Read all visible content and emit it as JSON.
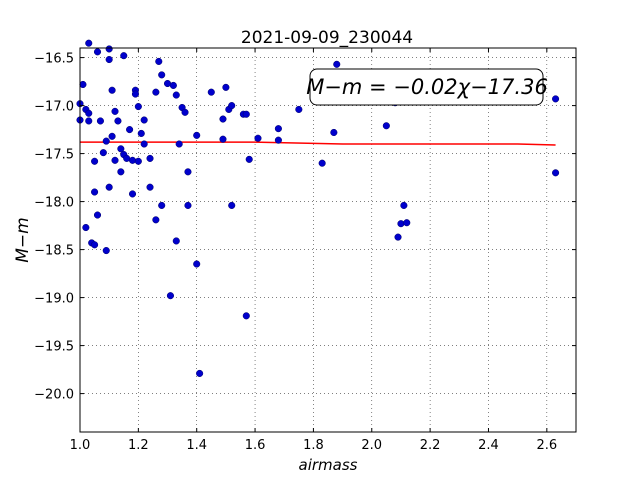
{
  "chart_data": {
    "type": "scatter",
    "title": "2021-09-09_230044",
    "xlabel": "airmass",
    "ylabel": "M−m",
    "annotation": "M−m = −0.02χ−17.36",
    "xlim": [
      1.0,
      2.7
    ],
    "ylim": [
      -20.4,
      -16.4
    ],
    "ylim_inverted_note": "inverted",
    "grid": true,
    "xticks": [
      1.0,
      1.2,
      1.4,
      1.6,
      1.8,
      2.0,
      2.2,
      2.4,
      2.6
    ],
    "xtick_labels": [
      "1.0",
      "1.2",
      "1.4",
      "1.6",
      "1.8",
      "2.0",
      "2.2",
      "2.4",
      "2.6"
    ],
    "yticks": [
      -16.5,
      -17.0,
      -17.5,
      -18.0,
      -18.5,
      -19.0,
      -19.5,
      -20.0
    ],
    "ytick_labels": [
      "−16.5",
      "−17.0",
      "−17.5",
      "−18.0",
      "−18.5",
      "−19.0",
      "−19.5",
      "−20.0"
    ],
    "colors": {
      "points": "#0000cc",
      "fit_line": "#ff0000"
    },
    "series": [
      {
        "type": "scatter",
        "x": [
          1.0,
          1.0,
          1.01,
          1.02,
          1.02,
          1.03,
          1.03,
          1.03,
          1.04,
          1.05,
          1.05,
          1.05,
          1.06,
          1.06,
          1.07,
          1.08,
          1.09,
          1.09,
          1.1,
          1.1,
          1.1,
          1.11,
          1.11,
          1.12,
          1.12,
          1.13,
          1.14,
          1.14,
          1.15,
          1.15,
          1.16,
          1.17,
          1.18,
          1.18,
          1.19,
          1.19,
          1.2,
          1.2,
          1.21,
          1.22,
          1.22,
          1.24,
          1.24,
          1.26,
          1.26,
          1.27,
          1.28,
          1.28,
          1.3,
          1.31,
          1.32,
          1.33,
          1.33,
          1.34,
          1.35,
          1.36,
          1.37,
          1.37,
          1.4,
          1.4,
          1.41,
          1.45,
          1.49,
          1.49,
          1.5,
          1.51,
          1.52,
          1.52,
          1.56,
          1.57,
          1.57,
          1.58,
          1.61,
          1.68,
          1.68,
          1.75,
          1.83,
          1.87,
          1.88,
          2.05,
          2.08,
          2.09,
          2.1,
          2.11,
          2.12,
          2.63,
          2.63
        ],
        "y": [
          -16.98,
          -17.15,
          -16.78,
          -17.04,
          -18.27,
          -16.35,
          -17.16,
          -17.08,
          -18.43,
          -17.9,
          -18.45,
          -17.58,
          -16.44,
          -18.14,
          -17.16,
          -17.49,
          -17.37,
          -18.51,
          -16.41,
          -16.52,
          -17.85,
          -16.84,
          -17.32,
          -17.57,
          -17.06,
          -17.16,
          -17.45,
          -17.69,
          -16.48,
          -17.51,
          -17.55,
          -17.25,
          -17.57,
          -17.92,
          -16.84,
          -16.88,
          -17.58,
          -17.01,
          -17.29,
          -17.4,
          -17.15,
          -17.55,
          -17.85,
          -18.19,
          -16.86,
          -16.54,
          -16.68,
          -18.04,
          -16.77,
          -18.98,
          -16.79,
          -16.89,
          -18.41,
          -17.4,
          -17.02,
          -17.07,
          -18.04,
          -17.69,
          -18.65,
          -17.31,
          -19.79,
          -16.86,
          -17.14,
          -17.35,
          -16.81,
          -17.04,
          -17.0,
          -18.04,
          -17.09,
          -19.19,
          -17.09,
          -17.56,
          -17.34,
          -17.24,
          -17.36,
          -17.04,
          -17.6,
          -17.28,
          -16.57,
          -17.21,
          -16.97,
          -18.37,
          -18.23,
          -18.04,
          -18.22,
          -16.93,
          -17.7
        ]
      },
      {
        "type": "line",
        "x": [
          1.0,
          1.3,
          1.6,
          1.9,
          2.2,
          2.5,
          2.63
        ],
        "y": [
          -17.38,
          -17.38,
          -17.38,
          -17.4,
          -17.4,
          -17.4,
          -17.41
        ]
      }
    ]
  }
}
